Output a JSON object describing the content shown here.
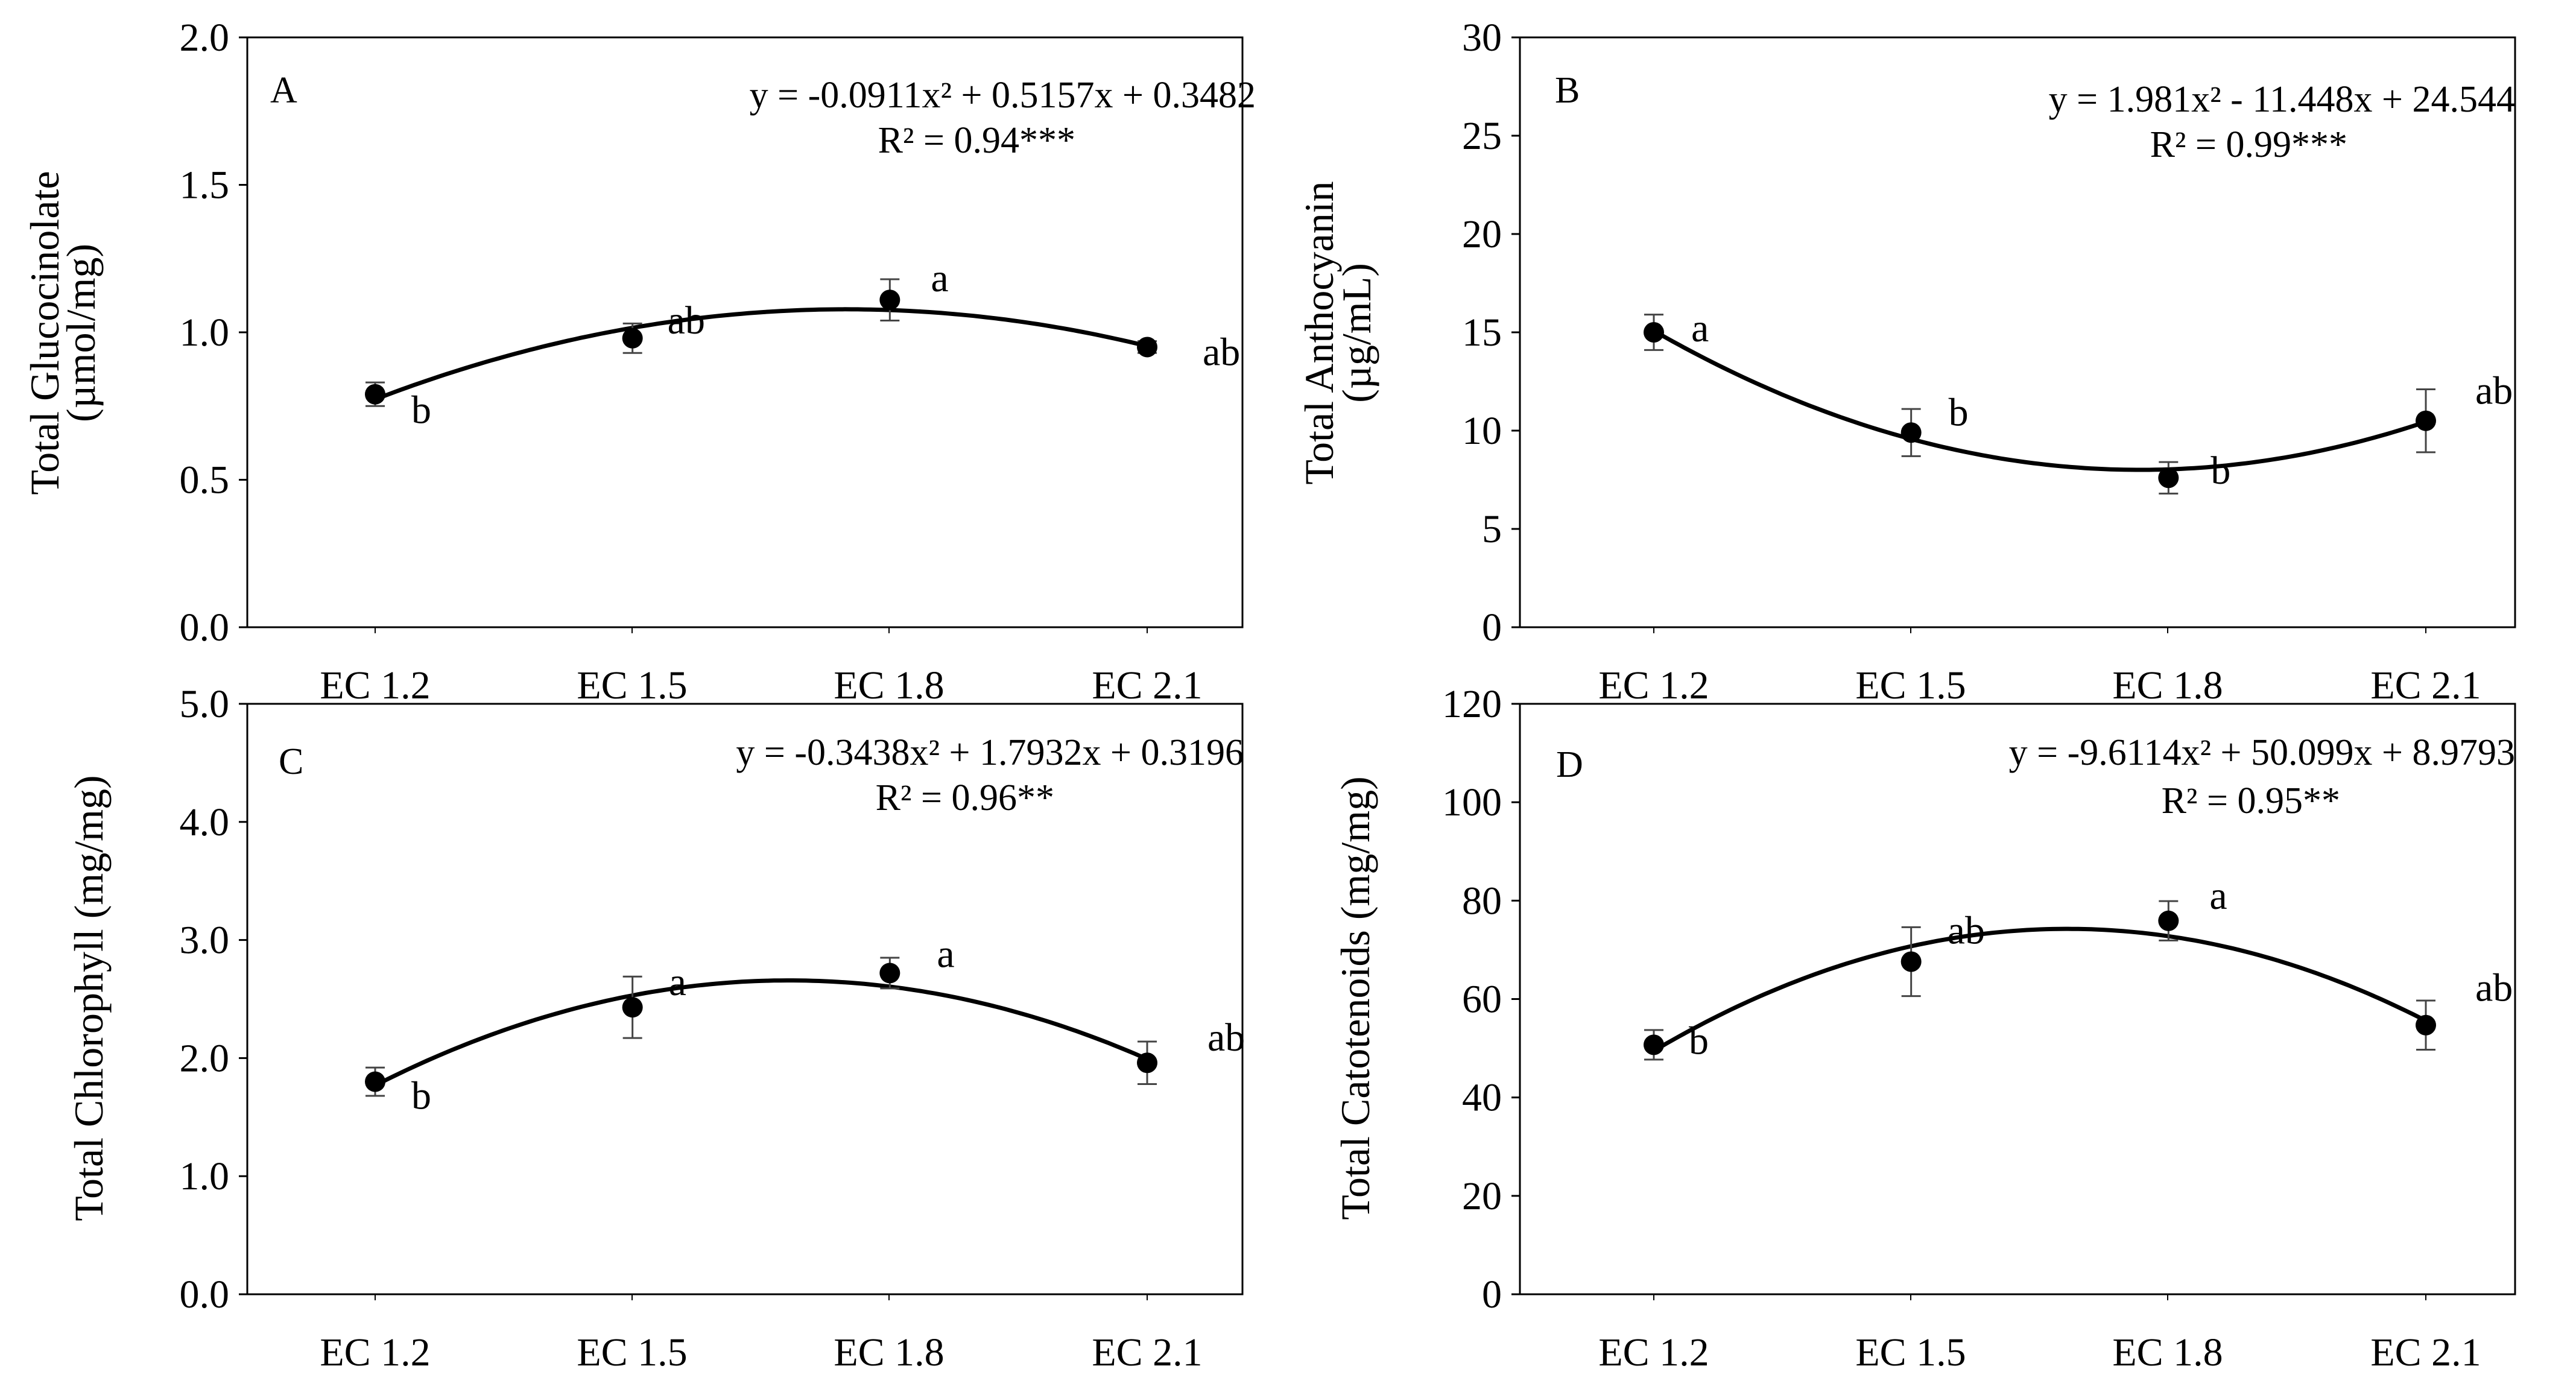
{
  "chart_data": [
    {
      "type": "scatter",
      "panel_label": "A",
      "categories": [
        "EC 1.2",
        "EC 1.5",
        "EC 1.8",
        "EC 2.1"
      ],
      "x": [
        1,
        2,
        3,
        4
      ],
      "values": [
        0.79,
        0.98,
        1.11,
        0.95
      ],
      "errors": [
        0.04,
        0.05,
        0.07,
        0.02
      ],
      "significance": [
        "b",
        "ab",
        "a",
        "ab"
      ],
      "trendline": {
        "type": "polynomial",
        "order": 2,
        "coefficients": [
          -0.0911,
          0.5157,
          0.3482
        ]
      },
      "equation": "y = -0.0911x² + 0.5157x + 0.3482",
      "r_squared": "R² = 0.94***",
      "ylabel_line1": "Total Glucocinolate",
      "ylabel_line2": "(µmol/mg)",
      "ylim": [
        0,
        2.0
      ],
      "yticks": [
        "0.0",
        "0.5",
        "1.0",
        "1.5",
        "2.0"
      ],
      "ytick_values": [
        0,
        0.5,
        1.0,
        1.5,
        2.0
      ],
      "grid": false
    },
    {
      "type": "scatter",
      "panel_label": "B",
      "categories": [
        "EC 1.2",
        "EC 1.5",
        "EC 1.8",
        "EC 2.1"
      ],
      "x": [
        1,
        2,
        3,
        4
      ],
      "values": [
        15.0,
        9.9,
        7.6,
        10.5
      ],
      "errors": [
        0.9,
        1.2,
        0.8,
        1.6
      ],
      "significance": [
        "a",
        "b",
        "b",
        "ab"
      ],
      "trendline": {
        "type": "polynomial",
        "order": 2,
        "coefficients": [
          1.981,
          -11.448,
          24.544
        ]
      },
      "equation": "y = 1.981x² - 11.448x + 24.544",
      "r_squared": "R² = 0.99***",
      "ylabel_line1": "Total Anthocyanin",
      "ylabel_line2": "(µg/mL)",
      "ylim": [
        0,
        30
      ],
      "yticks": [
        "0",
        "5",
        "10",
        "15",
        "20",
        "25",
        "30"
      ],
      "ytick_values": [
        0,
        5,
        10,
        15,
        20,
        25,
        30
      ],
      "grid": false
    },
    {
      "type": "scatter",
      "panel_label": "C",
      "categories": [
        "EC 1.2",
        "EC 1.5",
        "EC 1.8",
        "EC 2.1"
      ],
      "x": [
        1,
        2,
        3,
        4
      ],
      "values": [
        1.8,
        2.43,
        2.72,
        1.96
      ],
      "errors": [
        0.12,
        0.26,
        0.13,
        0.18
      ],
      "significance": [
        "b",
        "a",
        "a",
        "ab"
      ],
      "trendline": {
        "type": "polynomial",
        "order": 2,
        "coefficients": [
          -0.3438,
          1.7932,
          0.3196
        ]
      },
      "equation": "y = -0.3438x² + 1.7932x + 0.3196",
      "r_squared": "R² = 0.96**",
      "ylabel_line1": "Total Chlorophyll (mg/mg)",
      "ylabel_line2": "",
      "ylim": [
        0,
        5.0
      ],
      "yticks": [
        "0.0",
        "1.0",
        "2.0",
        "3.0",
        "4.0",
        "5.0"
      ],
      "ytick_values": [
        0,
        1,
        2,
        3,
        4,
        5
      ],
      "grid": false
    },
    {
      "type": "scatter",
      "panel_label": "D",
      "categories": [
        "EC 1.2",
        "EC 1.5",
        "EC 1.8",
        "EC 2.1"
      ],
      "x": [
        1,
        2,
        3,
        4
      ],
      "values": [
        50.7,
        67.6,
        75.9,
        54.7
      ],
      "errors": [
        3.0,
        7.0,
        4.0,
        5.0
      ],
      "significance": [
        "b",
        "ab",
        "a",
        "ab"
      ],
      "trendline": {
        "type": "polynomial",
        "order": 2,
        "coefficients": [
          -9.6114,
          50.099,
          8.9793
        ]
      },
      "equation": "y = -9.6114x² + 50.099x + 8.9793",
      "r_squared": "R² = 0.95**",
      "ylabel_line1": "Total Catotenoids (mg/mg)",
      "ylabel_line2": "",
      "ylim": [
        0,
        120
      ],
      "yticks": [
        "0",
        "20",
        "40",
        "60",
        "80",
        "100",
        "120"
      ],
      "ytick_values": [
        0,
        20,
        40,
        60,
        80,
        100,
        120
      ],
      "grid": false
    }
  ]
}
